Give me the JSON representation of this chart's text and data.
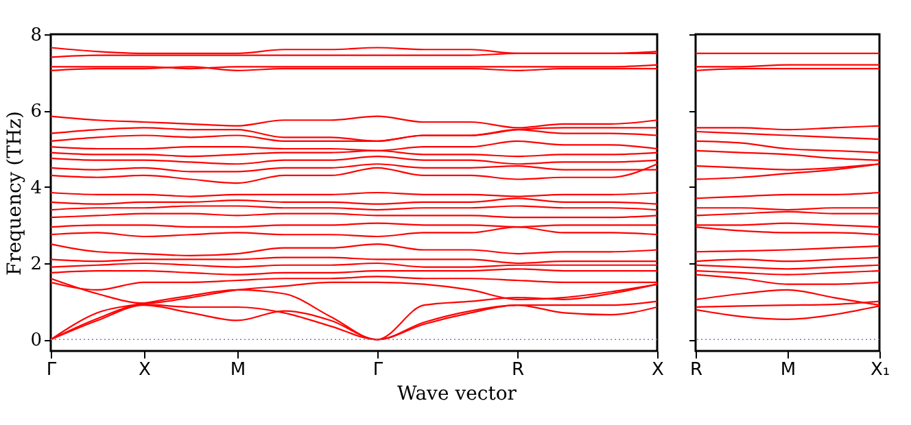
{
  "chart_data": [
    {
      "type": "line",
      "xlabel": "Wave vector",
      "ylabel": "Frequency (THz)",
      "line_style": "solid",
      "categories": [
        "Γ",
        null,
        "X",
        null,
        "M",
        null,
        null,
        "Γ",
        null,
        null,
        "R",
        null,
        null,
        "X"
      ],
      "ylim": [
        -0.3,
        8
      ],
      "yticks": [
        0,
        2,
        4,
        6,
        8
      ],
      "ref_lines": [
        {
          "axis": "y",
          "value": 0,
          "color": "#7777cc",
          "line_style": "dotted"
        }
      ],
      "series": [
        {
          "color": "#ff0000",
          "values": [
            0,
            0.5,
            0.9,
            0.7,
            0.5,
            0.75,
            0.5,
            0,
            0.4,
            0.7,
            0.9,
            0.7,
            0.65,
            0.85
          ]
        },
        {
          "color": "#ff0000",
          "values": [
            0,
            0.55,
            0.92,
            0.85,
            0.85,
            0.7,
            0.35,
            0,
            0.45,
            0.75,
            0.9,
            0.9,
            0.9,
            1.0
          ]
        },
        {
          "color": "#ff0000",
          "values": [
            0,
            0.7,
            0.95,
            1.15,
            1.3,
            1.2,
            0.6,
            0,
            0.9,
            1.0,
            1.1,
            1.05,
            1.2,
            1.45
          ]
        },
        {
          "color": "#ff0000",
          "values": [
            1.6,
            1.2,
            0.95,
            1.1,
            1.3,
            1.4,
            1.5,
            1.5,
            1.45,
            1.3,
            1.05,
            1.1,
            1.25,
            1.45
          ]
        },
        {
          "color": "#ff0000",
          "values": [
            1.5,
            1.3,
            1.5,
            1.5,
            1.55,
            1.6,
            1.6,
            1.65,
            1.6,
            1.6,
            1.55,
            1.5,
            1.5,
            1.5
          ]
        },
        {
          "color": "#ff0000",
          "values": [
            1.75,
            1.8,
            1.8,
            1.75,
            1.7,
            1.75,
            1.75,
            1.8,
            1.8,
            1.8,
            1.85,
            1.8,
            1.8,
            1.8
          ]
        },
        {
          "color": "#ff0000",
          "values": [
            1.9,
            1.95,
            2.0,
            1.95,
            1.9,
            1.95,
            1.95,
            2.0,
            1.9,
            1.9,
            1.95,
            1.95,
            1.95,
            1.95
          ]
        },
        {
          "color": "#ff0000",
          "values": [
            2.1,
            2.05,
            2.1,
            2.1,
            2.1,
            2.15,
            2.15,
            2.1,
            2.1,
            2.1,
            2.0,
            2.05,
            2.05,
            2.05
          ]
        },
        {
          "color": "#ff0000",
          "values": [
            2.5,
            2.3,
            2.25,
            2.2,
            2.25,
            2.4,
            2.4,
            2.5,
            2.35,
            2.35,
            2.25,
            2.3,
            2.3,
            2.35
          ]
        },
        {
          "color": "#ff0000",
          "values": [
            2.75,
            2.8,
            2.7,
            2.75,
            2.8,
            2.75,
            2.75,
            2.7,
            2.8,
            2.8,
            2.95,
            2.8,
            2.8,
            2.75
          ]
        },
        {
          "color": "#ff0000",
          "values": [
            2.95,
            3.0,
            3.0,
            2.95,
            2.95,
            3.0,
            3.0,
            3.05,
            3.0,
            3.0,
            2.95,
            3.0,
            3.0,
            3.0
          ]
        },
        {
          "color": "#ff0000",
          "values": [
            3.2,
            3.25,
            3.3,
            3.3,
            3.25,
            3.3,
            3.3,
            3.25,
            3.25,
            3.25,
            3.2,
            3.2,
            3.2,
            3.25
          ]
        },
        {
          "color": "#ff0000",
          "values": [
            3.4,
            3.45,
            3.45,
            3.5,
            3.5,
            3.45,
            3.45,
            3.4,
            3.45,
            3.45,
            3.5,
            3.45,
            3.45,
            3.4
          ]
        },
        {
          "color": "#ff0000",
          "values": [
            3.6,
            3.55,
            3.6,
            3.6,
            3.65,
            3.6,
            3.6,
            3.55,
            3.6,
            3.6,
            3.7,
            3.6,
            3.6,
            3.55
          ]
        },
        {
          "color": "#ff0000",
          "values": [
            3.85,
            3.8,
            3.8,
            3.75,
            3.8,
            3.8,
            3.8,
            3.85,
            3.8,
            3.8,
            3.75,
            3.8,
            3.8,
            3.85
          ]
        },
        {
          "color": "#ff0000",
          "values": [
            4.3,
            4.25,
            4.3,
            4.2,
            4.1,
            4.3,
            4.3,
            4.5,
            4.3,
            4.3,
            4.2,
            4.25,
            4.25,
            4.6
          ]
        },
        {
          "color": "#ff0000",
          "values": [
            4.5,
            4.45,
            4.5,
            4.4,
            4.4,
            4.5,
            4.5,
            4.6,
            4.5,
            4.5,
            4.55,
            4.45,
            4.45,
            4.45
          ]
        },
        {
          "color": "#ff0000",
          "values": [
            4.75,
            4.7,
            4.7,
            4.65,
            4.6,
            4.7,
            4.7,
            4.8,
            4.7,
            4.7,
            4.6,
            4.65,
            4.65,
            4.7
          ]
        },
        {
          "color": "#ff0000",
          "values": [
            4.9,
            4.85,
            4.85,
            4.8,
            4.85,
            4.9,
            4.9,
            4.95,
            4.85,
            4.85,
            4.8,
            4.85,
            4.85,
            4.9
          ]
        },
        {
          "color": "#ff0000",
          "values": [
            5.05,
            5.0,
            5.0,
            5.05,
            5.05,
            5.0,
            5.0,
            4.95,
            5.05,
            5.05,
            5.2,
            5.1,
            5.1,
            5.0
          ]
        },
        {
          "color": "#ff0000",
          "values": [
            5.2,
            5.3,
            5.35,
            5.3,
            5.35,
            5.2,
            5.2,
            5.2,
            5.35,
            5.35,
            5.5,
            5.4,
            5.4,
            5.35
          ]
        },
        {
          "color": "#ff0000",
          "values": [
            5.4,
            5.5,
            5.55,
            5.5,
            5.5,
            5.3,
            5.3,
            5.2,
            5.35,
            5.35,
            5.5,
            5.55,
            5.55,
            5.55
          ]
        },
        {
          "color": "#ff0000",
          "values": [
            5.85,
            5.75,
            5.7,
            5.65,
            5.6,
            5.75,
            5.75,
            5.85,
            5.7,
            5.7,
            5.55,
            5.65,
            5.65,
            5.75
          ]
        },
        {
          "color": "#ff0000",
          "values": [
            7.05,
            7.1,
            7.1,
            7.15,
            7.05,
            7.1,
            7.1,
            7.1,
            7.1,
            7.1,
            7.05,
            7.1,
            7.1,
            7.1
          ]
        },
        {
          "color": "#ff0000",
          "values": [
            7.15,
            7.15,
            7.15,
            7.1,
            7.15,
            7.15,
            7.15,
            7.15,
            7.15,
            7.15,
            7.15,
            7.15,
            7.15,
            7.2
          ]
        },
        {
          "color": "#ff0000",
          "values": [
            7.4,
            7.45,
            7.45,
            7.45,
            7.45,
            7.45,
            7.45,
            7.45,
            7.45,
            7.45,
            7.5,
            7.5,
            7.5,
            7.5
          ]
        },
        {
          "color": "#ff0000",
          "values": [
            7.65,
            7.55,
            7.5,
            7.5,
            7.5,
            7.6,
            7.6,
            7.65,
            7.6,
            7.6,
            7.5,
            7.5,
            7.5,
            7.55
          ]
        }
      ]
    },
    {
      "type": "line",
      "line_style": "solid",
      "tick_labels": "x",
      "categories": [
        "R",
        null,
        "M",
        null,
        "X₁"
      ],
      "ylim": [
        -0.3,
        8
      ],
      "yticks": [
        0,
        2,
        4,
        6,
        8
      ],
      "ref_lines": [
        {
          "axis": "y",
          "value": 0,
          "color": "#7777cc",
          "line_style": "dotted"
        }
      ],
      "series": [
        {
          "color": "#ff0000",
          "values": [
            0.78,
            0.6,
            0.53,
            0.65,
            0.88
          ]
        },
        {
          "color": "#ff0000",
          "values": [
            0.85,
            0.88,
            0.9,
            0.92,
            1.0
          ]
        },
        {
          "color": "#ff0000",
          "values": [
            1.05,
            1.2,
            1.3,
            1.1,
            0.9
          ]
        },
        {
          "color": "#ff0000",
          "values": [
            1.7,
            1.6,
            1.45,
            1.45,
            1.5
          ]
        },
        {
          "color": "#ff0000",
          "values": [
            1.8,
            1.75,
            1.7,
            1.75,
            1.8
          ]
        },
        {
          "color": "#ff0000",
          "values": [
            1.95,
            1.9,
            1.85,
            1.9,
            1.95
          ]
        },
        {
          "color": "#ff0000",
          "values": [
            2.05,
            2.1,
            2.05,
            2.1,
            2.15
          ]
        },
        {
          "color": "#ff0000",
          "values": [
            2.3,
            2.32,
            2.35,
            2.4,
            2.45
          ]
        },
        {
          "color": "#ff0000",
          "values": [
            2.95,
            2.85,
            2.8,
            2.8,
            2.75
          ]
        },
        {
          "color": "#ff0000",
          "values": [
            3.0,
            3.0,
            3.05,
            3.0,
            2.95
          ]
        },
        {
          "color": "#ff0000",
          "values": [
            3.25,
            3.3,
            3.35,
            3.3,
            3.3
          ]
        },
        {
          "color": "#ff0000",
          "values": [
            3.45,
            3.45,
            3.4,
            3.45,
            3.45
          ]
        },
        {
          "color": "#ff0000",
          "values": [
            3.7,
            3.75,
            3.8,
            3.8,
            3.85
          ]
        },
        {
          "color": "#ff0000",
          "values": [
            4.2,
            4.25,
            4.35,
            4.45,
            4.6
          ]
        },
        {
          "color": "#ff0000",
          "values": [
            4.55,
            4.5,
            4.45,
            4.5,
            4.6
          ]
        },
        {
          "color": "#ff0000",
          "values": [
            4.95,
            4.9,
            4.85,
            4.75,
            4.7
          ]
        },
        {
          "color": "#ff0000",
          "values": [
            5.2,
            5.15,
            5.0,
            4.95,
            4.9
          ]
        },
        {
          "color": "#ff0000",
          "values": [
            5.45,
            5.4,
            5.35,
            5.3,
            5.25
          ]
        },
        {
          "color": "#ff0000",
          "values": [
            5.55,
            5.55,
            5.5,
            5.55,
            5.6
          ]
        },
        {
          "color": "#ff0000",
          "values": [
            7.05,
            7.1,
            7.1,
            7.1,
            7.1
          ]
        },
        {
          "color": "#ff0000",
          "values": [
            7.15,
            7.15,
            7.2,
            7.2,
            7.2
          ]
        },
        {
          "color": "#ff0000",
          "values": [
            7.5,
            7.5,
            7.5,
            7.5,
            7.5
          ]
        }
      ]
    }
  ]
}
